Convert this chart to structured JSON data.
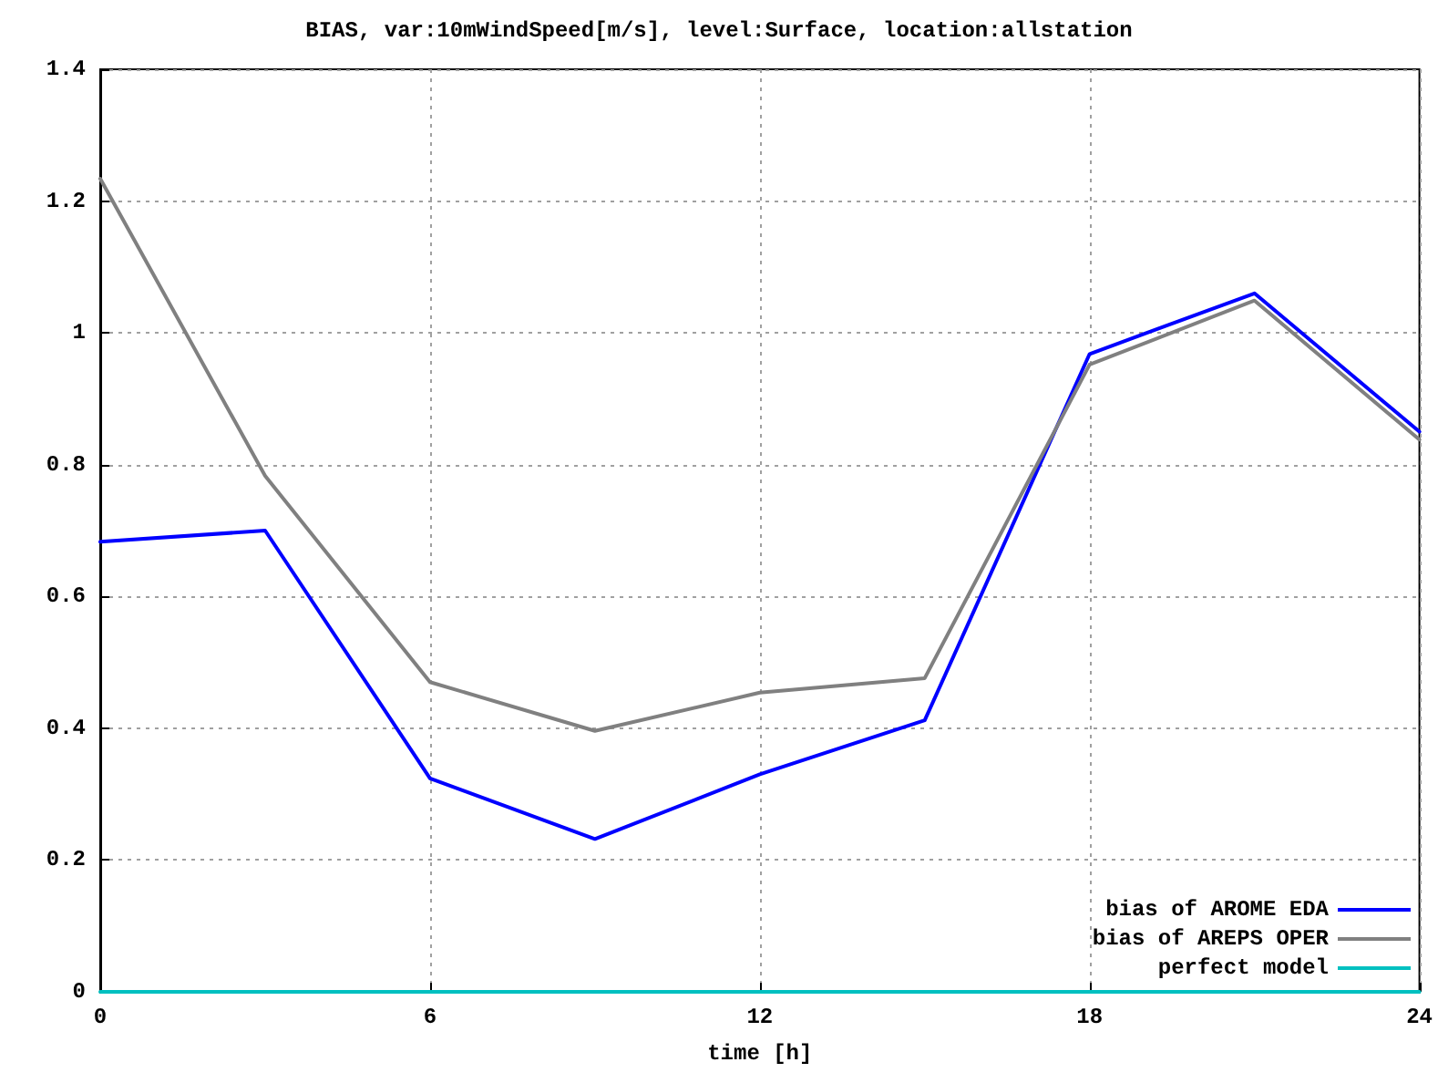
{
  "chart_data": {
    "type": "line",
    "title": "BIAS, var:10mWindSpeed[m/s], level:Surface, location:allstation",
    "xlabel": "time [h]",
    "x": [
      0,
      3,
      6,
      9,
      12,
      15,
      18,
      21,
      24
    ],
    "series": [
      {
        "name": "bias of AROME EDA",
        "color": "#0000ff",
        "values": [
          0.683,
          0.7,
          0.324,
          0.232,
          0.33,
          0.412,
          0.968,
          1.06,
          0.85
        ]
      },
      {
        "name": "bias of AREPS OPER",
        "color": "#808080",
        "values": [
          1.234,
          0.783,
          0.47,
          0.396,
          0.454,
          0.476,
          0.952,
          1.049,
          0.838
        ]
      },
      {
        "name": "perfect model",
        "color": "#00c0c0",
        "values": [
          0,
          0,
          0,
          0,
          0,
          0,
          0,
          0,
          0
        ]
      }
    ],
    "xlim": [
      0,
      24
    ],
    "xticks": [
      0,
      6,
      12,
      18,
      24
    ],
    "ylim": [
      0,
      1.4
    ],
    "yticks": [
      0,
      0.2,
      0.4,
      0.6,
      0.8,
      1,
      1.2,
      1.4
    ],
    "grid": true,
    "legend": "bottom right",
    "marker": "none",
    "line_style": "solid"
  }
}
